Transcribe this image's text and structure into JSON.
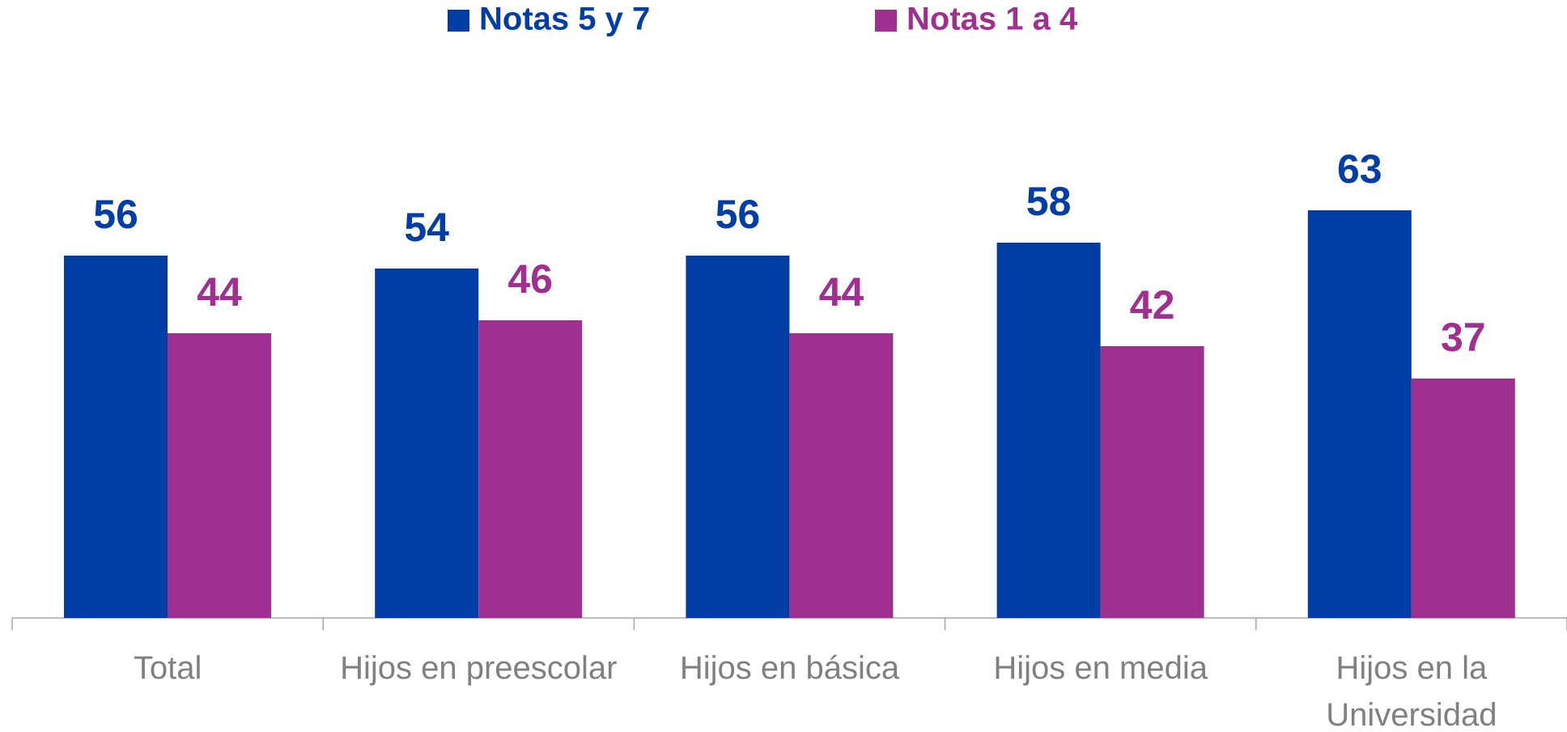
{
  "chart_data": {
    "type": "bar",
    "categories": [
      "Total",
      "Hijos en preescolar",
      "Hijos en básica",
      "Hijos en media",
      "Hijos en la Universidad"
    ],
    "series": [
      {
        "name": "Notas 5 y 7",
        "color": "#003DA5",
        "values": [
          56,
          54,
          56,
          58,
          63
        ]
      },
      {
        "name": "Notas 1 a 4",
        "color": "#A0308F",
        "values": [
          44,
          46,
          44,
          42,
          37
        ]
      }
    ],
    "ylim": [
      0,
      95
    ]
  }
}
